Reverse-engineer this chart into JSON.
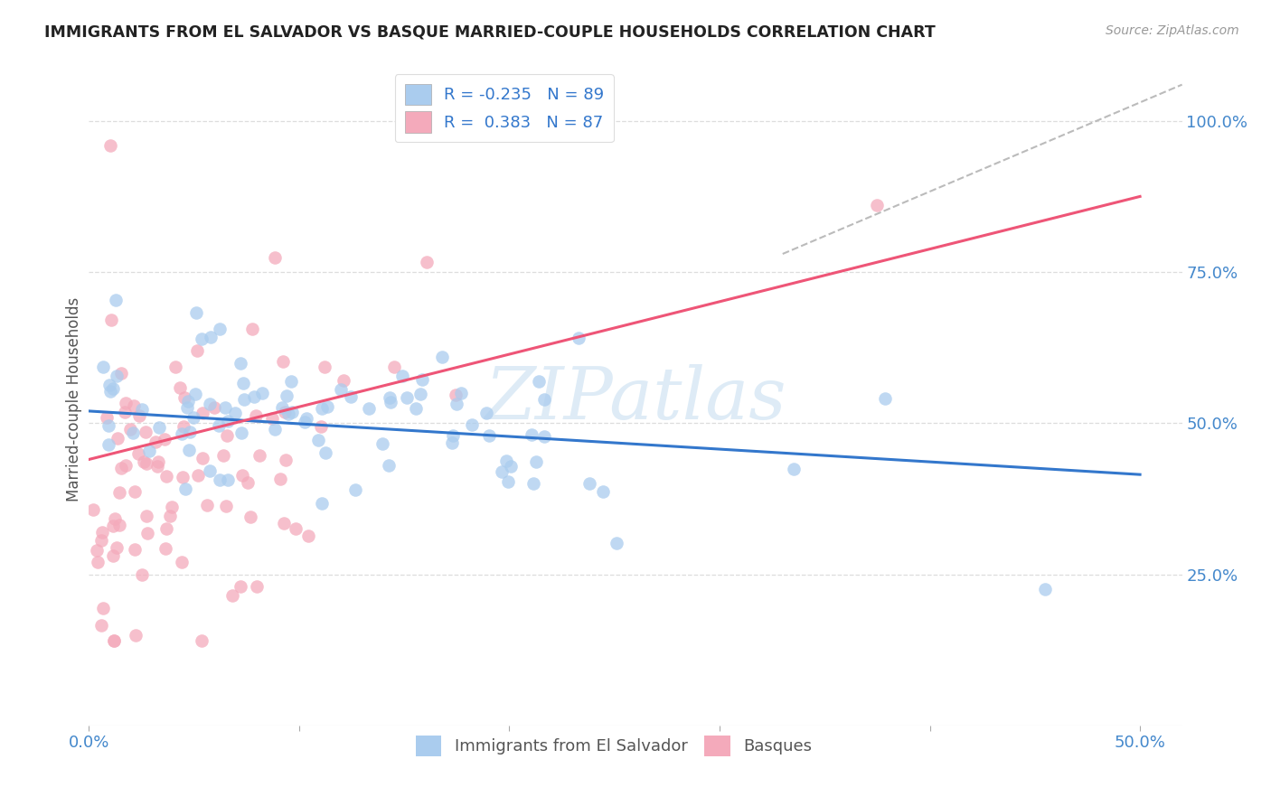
{
  "title": "IMMIGRANTS FROM EL SALVADOR VS BASQUE MARRIED-COUPLE HOUSEHOLDS CORRELATION CHART",
  "source": "Source: ZipAtlas.com",
  "ylabel": "Married-couple Households",
  "ytick_vals": [
    0.25,
    0.5,
    0.75,
    1.0
  ],
  "ytick_labels": [
    "25.0%",
    "50.0%",
    "75.0%",
    "100.0%"
  ],
  "xtick_vals": [
    0.0,
    0.1,
    0.2,
    0.3,
    0.4,
    0.5
  ],
  "xtick_labels": [
    "0.0%",
    "",
    "",
    "",
    "",
    "50.0%"
  ],
  "xlim": [
    0.0,
    0.52
  ],
  "ylim": [
    0.0,
    1.08
  ],
  "blue_color": "#aaccee",
  "pink_color": "#f4aabb",
  "blue_line_color": "#3377cc",
  "pink_line_color": "#ee5577",
  "legend_label_blue": "Immigrants from El Salvador",
  "legend_label_pink": "Basques",
  "R_blue": -0.235,
  "N_blue": 89,
  "R_pink": 0.383,
  "N_pink": 87,
  "watermark": "ZIPatlas",
  "grid_color": "#dddddd",
  "blue_trend_x0": 0.0,
  "blue_trend_y0": 0.52,
  "blue_trend_x1": 0.5,
  "blue_trend_y1": 0.415,
  "pink_trend_x0": 0.0,
  "pink_trend_y0": 0.44,
  "pink_trend_x1": 0.5,
  "pink_trend_y1": 0.875
}
